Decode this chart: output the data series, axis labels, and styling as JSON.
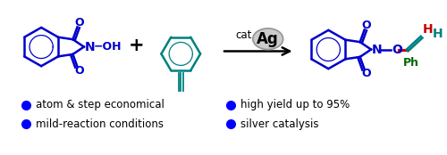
{
  "background_color": "#ffffff",
  "bullet_points_left": [
    "atom & step economical",
    "mild-reaction conditions"
  ],
  "bullet_points_right": [
    "high yield up to 95%",
    "silver catalysis"
  ],
  "bullet_color": "#0000ff",
  "struct_blue": "#0000cc",
  "struct_teal": "#008080",
  "struct_red": "#cc0000",
  "struct_green": "#006600",
  "black": "#000000",
  "gray_fill": "#c8c8c8",
  "gray_edge": "#909090",
  "fig_width": 5.0,
  "fig_height": 1.74
}
